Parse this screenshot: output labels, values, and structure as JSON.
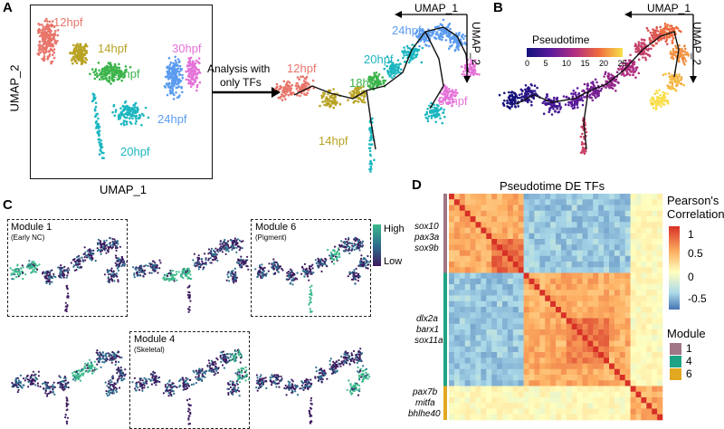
{
  "panels": {
    "a": {
      "letter": "A",
      "x_axis": "UMAP_1",
      "y_axis": "UMAP_2",
      "stages": [
        "12hpf",
        "14hpf",
        "18hpf",
        "20hpf",
        "24hpf",
        "30hpf"
      ],
      "arrow_label_line1": "Analysis with",
      "arrow_label_line2": "only TFs",
      "right_x_axis": "UMAP_1",
      "right_y_axis": "UMAP_2"
    },
    "b": {
      "letter": "B",
      "x_axis": "UMAP_1",
      "y_axis": "UMAP_2",
      "legend_title": "Pseudotime",
      "legend_ticks": [
        "0",
        "5",
        "10",
        "15",
        "20",
        "25"
      ]
    },
    "c": {
      "letter": "C",
      "module1_title": "Module 1",
      "module1_sub": "(Early NC)",
      "module6_title": "Module 6",
      "module6_sub": "(Pigment)",
      "module4_title": "Module 4",
      "module4_sub": "(Skeletal)",
      "legend_high": "High",
      "legend_low": "Low"
    },
    "d": {
      "letter": "D",
      "title": "Pseudotime DE TFs",
      "legend_title_line1": "Pearson's",
      "legend_title_line2": "Correlation",
      "legend_ticks": [
        "1",
        "0.5",
        "0",
        "-0.5"
      ],
      "gene_group1": [
        "sox10",
        "pax3a",
        "sox9b"
      ],
      "gene_group2": [
        "dlx2a",
        "barx1",
        "sox11a"
      ],
      "gene_group3": [
        "pax7b",
        "mitfa",
        "bhlhe40"
      ],
      "module_legend_title": "Module",
      "modules": [
        "1",
        "4",
        "6"
      ]
    }
  },
  "colors": {
    "stage_12": "#e8756b",
    "stage_14": "#b9a324",
    "stage_18": "#3cb44b",
    "stage_20": "#1cb6c0",
    "stage_24": "#5c9cf0",
    "stage_30": "#e572d8",
    "module_1": "#a07585",
    "module_4": "#1ea384",
    "module_6": "#e1a820"
  }
}
